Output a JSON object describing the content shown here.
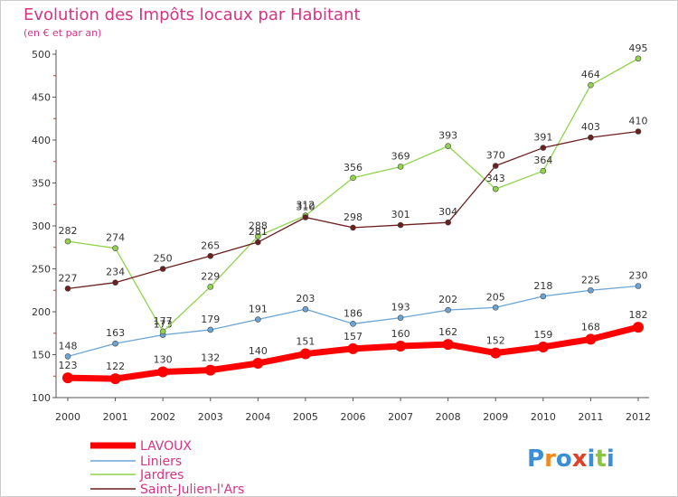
{
  "chart_data": {
    "type": "line",
    "title": "Evolution des Impôts locaux par Habitant",
    "subtitle": "(en € et par an)",
    "xlabel": "",
    "ylabel": "",
    "x": [
      "2000",
      "2001",
      "2002",
      "2003",
      "2004",
      "2005",
      "2006",
      "2007",
      "2008",
      "2009",
      "2010",
      "2011",
      "2012"
    ],
    "ylim": [
      100,
      500
    ],
    "yticks": [
      100,
      150,
      200,
      250,
      300,
      350,
      400,
      450,
      500
    ],
    "grid": false,
    "legend_position": "bottom-left",
    "series": [
      {
        "name": "LAVOUX",
        "color": "#ff0000",
        "values": [
          123,
          122,
          130,
          132,
          140,
          151,
          157,
          160,
          162,
          152,
          159,
          168,
          182
        ]
      },
      {
        "name": "Liniers",
        "color": "#6aa5d6",
        "values": [
          148,
          163,
          173,
          179,
          191,
          203,
          186,
          193,
          202,
          205,
          218,
          225,
          230
        ]
      },
      {
        "name": "Jardres",
        "color": "#8fd44b",
        "values": [
          282,
          274,
          177,
          229,
          288,
          312,
          356,
          369,
          393,
          343,
          364,
          464,
          495
        ]
      },
      {
        "name": "Saint-Julien-l'Ars",
        "color": "#6b1f1f",
        "values": [
          227,
          234,
          250,
          265,
          281,
          310,
          298,
          301,
          304,
          370,
          391,
          403,
          410
        ]
      }
    ]
  },
  "logo": {
    "letters": [
      "P",
      "r",
      "o",
      "x",
      "i",
      "t",
      "i"
    ],
    "colors": [
      "#3a8fd6",
      "#f08a1c",
      "#3a8fd6",
      "#e0402a",
      "#3a8fd6",
      "#8cc63f",
      "#3a8fd6"
    ]
  }
}
